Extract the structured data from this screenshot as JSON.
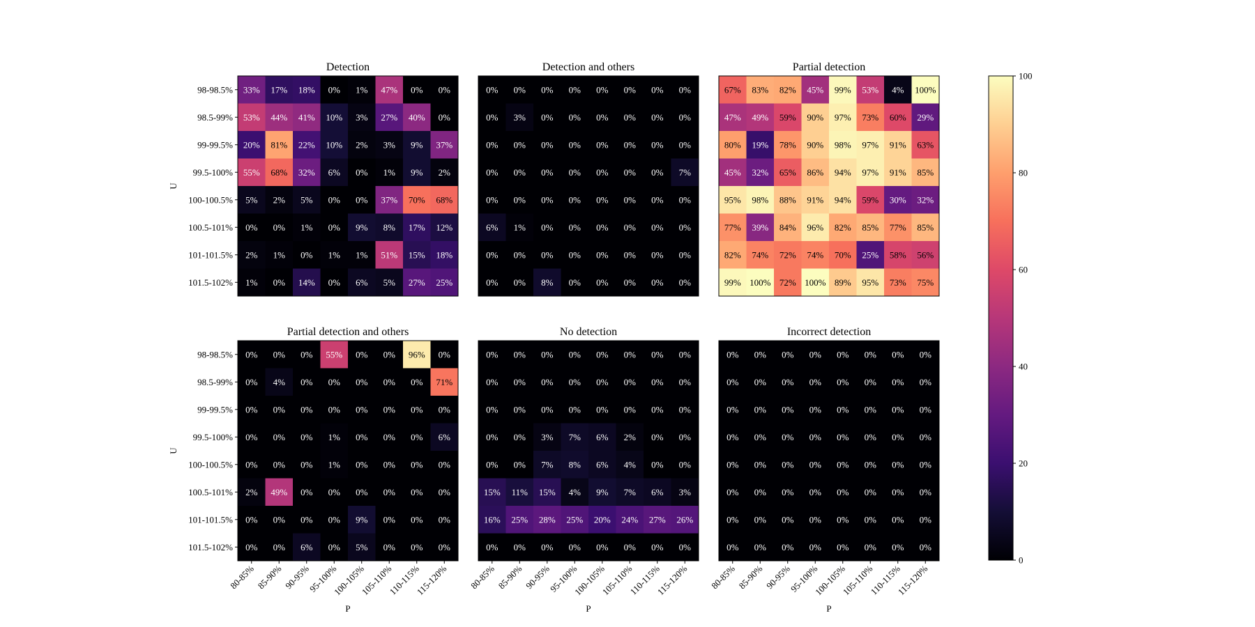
{
  "chart_data": {
    "type": "heatmap",
    "colormap": "magma",
    "color_range": [
      0,
      100
    ],
    "colorbar_ticks": [
      0,
      20,
      40,
      60,
      80,
      100
    ],
    "xlabel": "P",
    "ylabel": "U",
    "x_categories": [
      "80-85%",
      "85-90%",
      "90-95%",
      "95-100%",
      "100-105%",
      "105-110%",
      "110-115%",
      "115-120%"
    ],
    "y_categories": [
      "98-98.5%",
      "98.5-99%",
      "99-99.5%",
      "99.5-100%",
      "100-100.5%",
      "100.5-101%",
      "101-101.5%",
      "101.5-102%"
    ],
    "panels": [
      {
        "title": "Detection",
        "values": [
          [
            33,
            17,
            18,
            0,
            1,
            47,
            0,
            0
          ],
          [
            53,
            44,
            41,
            10,
            3,
            27,
            40,
            0
          ],
          [
            20,
            81,
            22,
            10,
            2,
            3,
            9,
            37
          ],
          [
            55,
            68,
            32,
            6,
            0,
            1,
            9,
            2
          ],
          [
            5,
            2,
            5,
            0,
            0,
            37,
            70,
            68
          ],
          [
            0,
            0,
            1,
            0,
            9,
            8,
            17,
            12
          ],
          [
            2,
            1,
            0,
            1,
            1,
            51,
            15,
            18
          ],
          [
            1,
            0,
            14,
            0,
            6,
            5,
            27,
            25
          ]
        ]
      },
      {
        "title": "Detection and others",
        "values": [
          [
            0,
            0,
            0,
            0,
            0,
            0,
            0,
            0
          ],
          [
            0,
            3,
            0,
            0,
            0,
            0,
            0,
            0
          ],
          [
            0,
            0,
            0,
            0,
            0,
            0,
            0,
            0
          ],
          [
            0,
            0,
            0,
            0,
            0,
            0,
            0,
            7
          ],
          [
            0,
            0,
            0,
            0,
            0,
            0,
            0,
            0
          ],
          [
            6,
            1,
            0,
            0,
            0,
            0,
            0,
            0
          ],
          [
            0,
            0,
            0,
            0,
            0,
            0,
            0,
            0
          ],
          [
            0,
            0,
            8,
            0,
            0,
            0,
            0,
            0
          ]
        ]
      },
      {
        "title": "Partial detection",
        "values": [
          [
            67,
            83,
            82,
            45,
            99,
            53,
            4,
            100
          ],
          [
            47,
            49,
            59,
            90,
            97,
            73,
            60,
            29
          ],
          [
            80,
            19,
            78,
            90,
            98,
            97,
            91,
            63
          ],
          [
            45,
            32,
            65,
            86,
            94,
            97,
            91,
            85
          ],
          [
            95,
            98,
            88,
            91,
            94,
            59,
            30,
            32
          ],
          [
            77,
            39,
            84,
            96,
            82,
            85,
            77,
            85
          ],
          [
            82,
            74,
            72,
            74,
            70,
            25,
            58,
            56
          ],
          [
            99,
            100,
            72,
            100,
            89,
            95,
            73,
            75
          ]
        ]
      },
      {
        "title": "Partial detection and others",
        "values": [
          [
            0,
            0,
            0,
            55,
            0,
            0,
            96,
            0
          ],
          [
            0,
            4,
            0,
            0,
            0,
            0,
            0,
            71
          ],
          [
            0,
            0,
            0,
            0,
            0,
            0,
            0,
            0
          ],
          [
            0,
            0,
            0,
            1,
            0,
            0,
            0,
            6
          ],
          [
            0,
            0,
            0,
            1,
            0,
            0,
            0,
            0
          ],
          [
            2,
            49,
            0,
            0,
            0,
            0,
            0,
            0
          ],
          [
            0,
            0,
            0,
            0,
            9,
            0,
            0,
            0
          ],
          [
            0,
            0,
            6,
            0,
            5,
            0,
            0,
            0
          ]
        ]
      },
      {
        "title": "No detection",
        "values": [
          [
            0,
            0,
            0,
            0,
            0,
            0,
            0,
            0
          ],
          [
            0,
            0,
            0,
            0,
            0,
            0,
            0,
            0
          ],
          [
            0,
            0,
            0,
            0,
            0,
            0,
            0,
            0
          ],
          [
            0,
            0,
            3,
            7,
            6,
            2,
            0,
            0
          ],
          [
            0,
            0,
            7,
            8,
            6,
            4,
            0,
            0
          ],
          [
            15,
            11,
            15,
            4,
            9,
            7,
            6,
            3
          ],
          [
            16,
            25,
            28,
            25,
            20,
            24,
            27,
            26
          ],
          [
            0,
            0,
            0,
            0,
            0,
            0,
            0,
            0
          ]
        ]
      },
      {
        "title": "Incorrect detection",
        "values": [
          [
            0,
            0,
            0,
            0,
            0,
            0,
            0,
            0
          ],
          [
            0,
            0,
            0,
            0,
            0,
            0,
            0,
            0
          ],
          [
            0,
            0,
            0,
            0,
            0,
            0,
            0,
            0
          ],
          [
            0,
            0,
            0,
            0,
            0,
            0,
            0,
            0
          ],
          [
            0,
            0,
            0,
            0,
            0,
            0,
            0,
            0
          ],
          [
            0,
            0,
            0,
            0,
            0,
            0,
            0,
            0
          ],
          [
            0,
            0,
            0,
            0,
            0,
            0,
            0,
            0
          ],
          [
            0,
            0,
            0,
            0,
            0,
            0,
            0,
            0
          ]
        ]
      }
    ]
  }
}
